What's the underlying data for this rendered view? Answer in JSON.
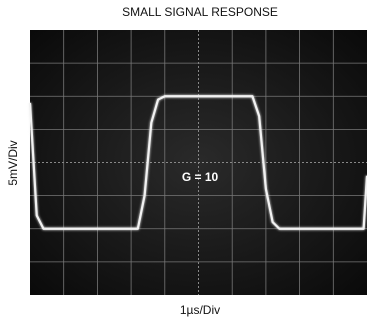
{
  "chart_data": {
    "type": "line",
    "title": "SMALL SIGNAL RESPONSE",
    "xlabel": "1µs/Div",
    "ylabel": "5mV/Div",
    "annotation": "G = 10",
    "x": [
      0,
      0.2,
      0.4,
      3.2,
      3.4,
      3.6,
      3.8,
      4.0,
      6.6,
      6.8,
      7.0,
      7.2,
      7.4,
      9.9,
      10
    ],
    "series": [
      {
        "color": "#f2f2f2",
        "values": [
          9,
          -8,
          -10,
          -10,
          -5,
          6,
          9.5,
          10,
          10,
          7,
          -4,
          -9,
          -10,
          -10,
          -2
        ]
      }
    ],
    "xlim": [
      0,
      10
    ],
    "ylim": [
      -20,
      20
    ]
  }
}
